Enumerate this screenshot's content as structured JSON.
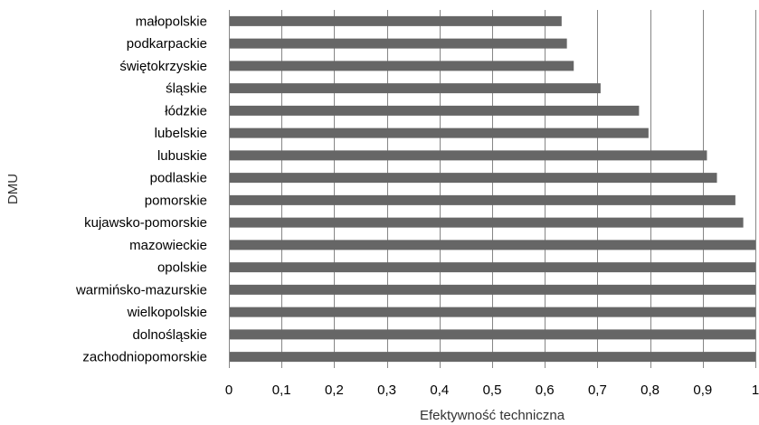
{
  "chart_data": {
    "type": "bar",
    "orientation": "horizontal",
    "categories": [
      "małopolskie",
      "podkarpackie",
      "świętokrzyskie",
      "śląskie",
      "łódzkie",
      "lubelskie",
      "lubuskie",
      "podlaskie",
      "pomorskie",
      "kujawsko-pomorskie",
      "mazowieckie",
      "opolskie",
      "warmińsko-mazurskie",
      "wielkopolskie",
      "dolnośląskie",
      "zachodniopomorskie"
    ],
    "values": [
      0.632,
      0.642,
      0.655,
      0.706,
      0.779,
      0.797,
      0.908,
      0.927,
      0.962,
      0.977,
      1,
      1,
      1,
      1,
      1,
      1
    ],
    "xlabel": "Efektywność techniczna",
    "ylabel": "DMU",
    "xlim": [
      0,
      1
    ],
    "xticks": [
      "0",
      "0,1",
      "0,2",
      "0,3",
      "0,4",
      "0,5",
      "0,6",
      "0,7",
      "0,8",
      "0,9",
      "1"
    ],
    "grid": "vertical",
    "legend": "none",
    "bar_color": "#666666",
    "grid_color": "#868686"
  }
}
